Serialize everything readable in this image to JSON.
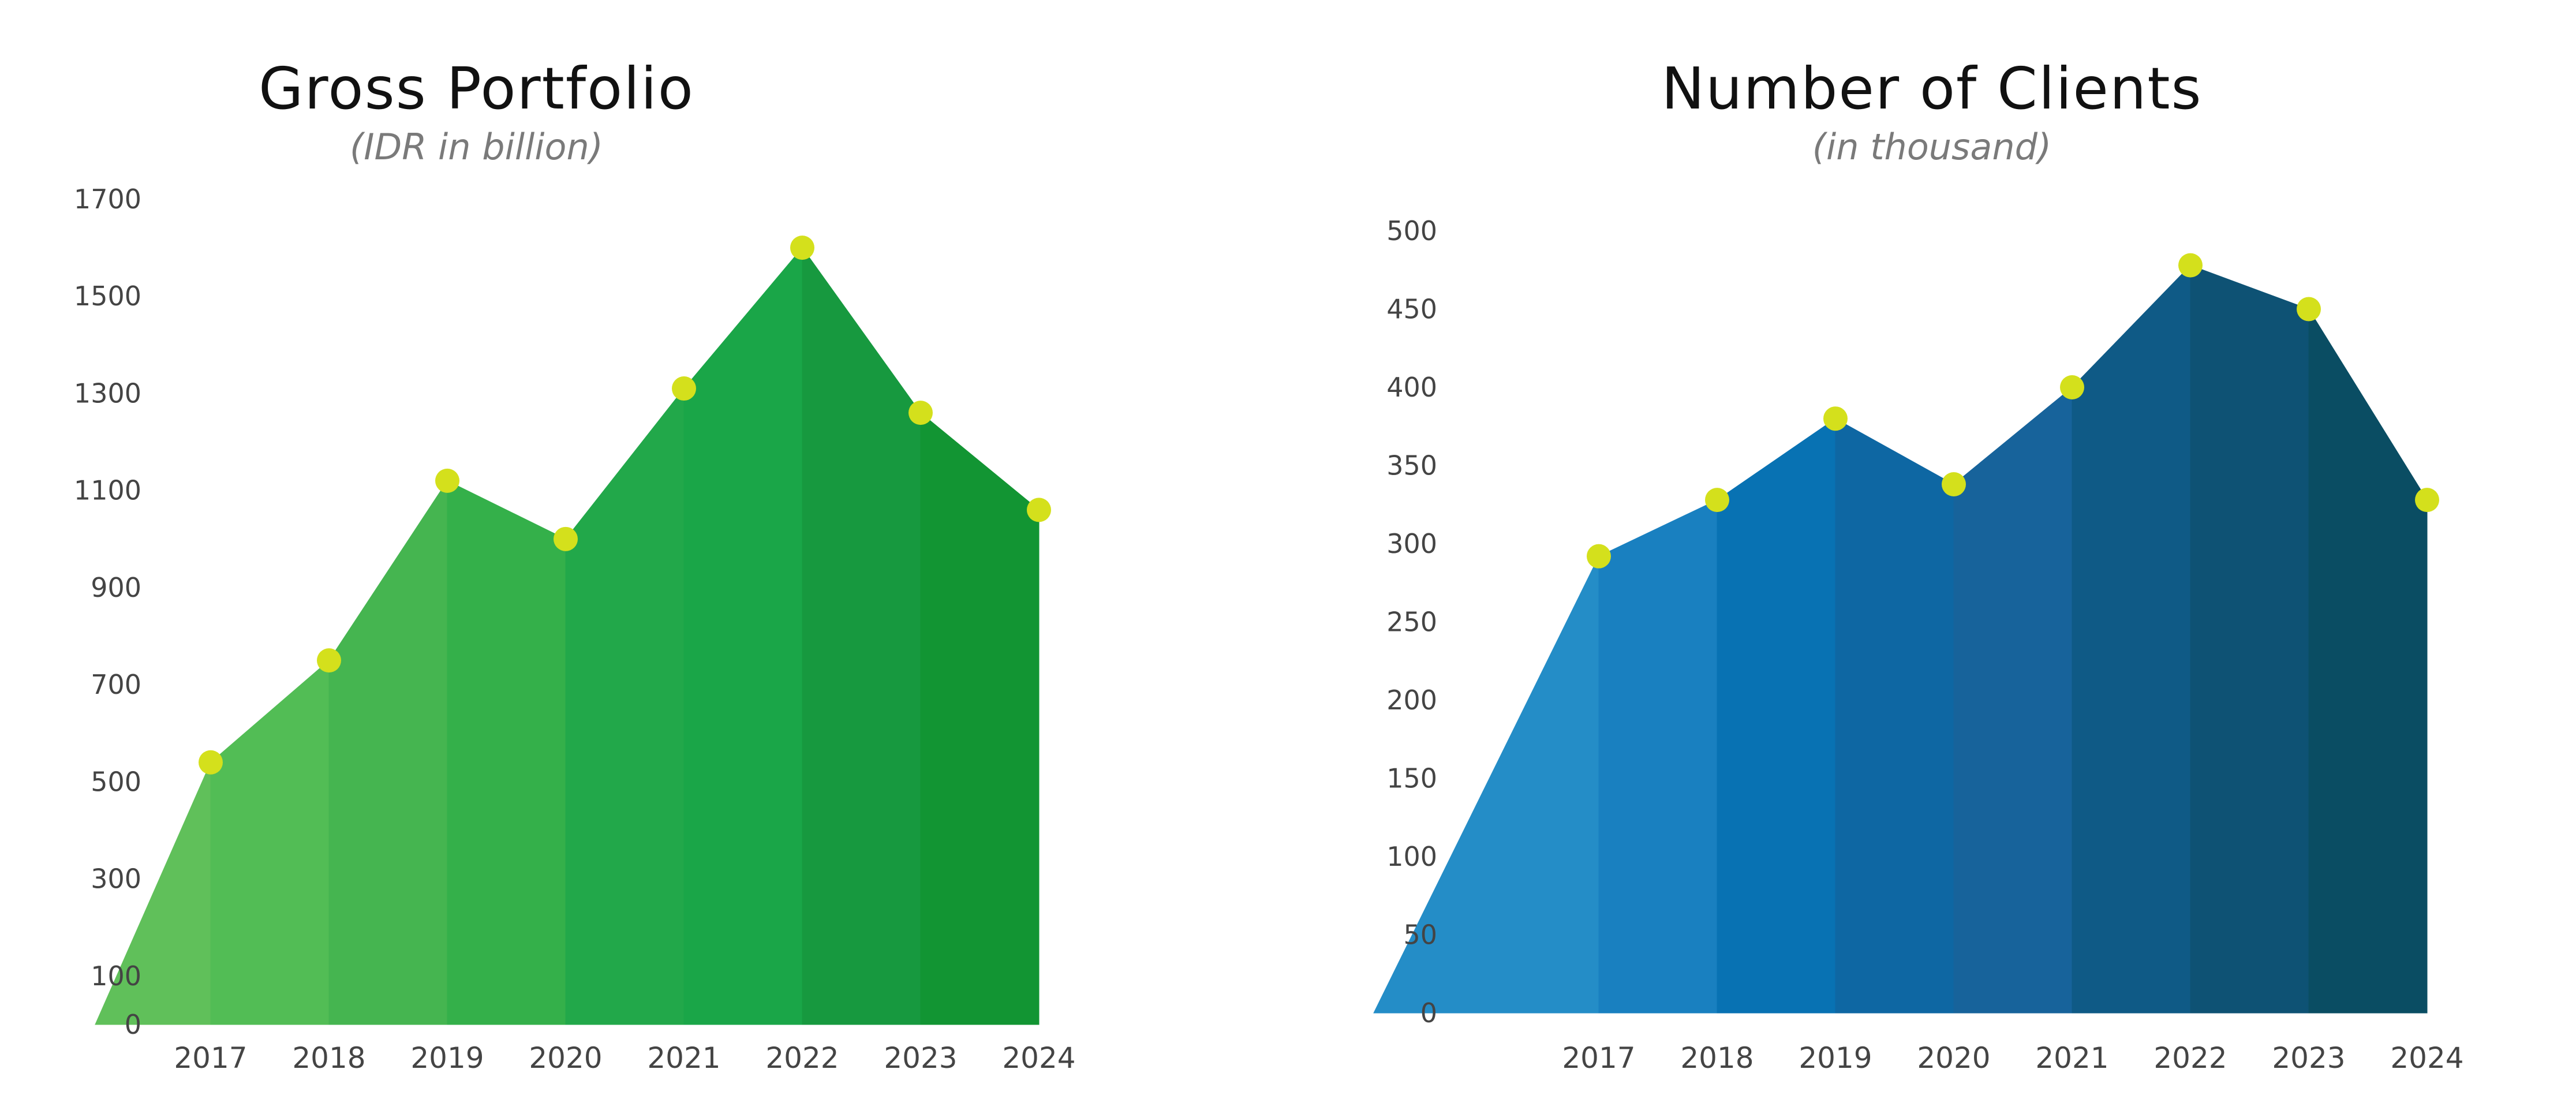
{
  "chart_data": [
    {
      "type": "area",
      "title": "Gross Portfolio",
      "subtitle": "(IDR in billion)",
      "categories": [
        "2017",
        "2018",
        "2019",
        "2020",
        "2021",
        "2022",
        "2023",
        "2024"
      ],
      "values": [
        540,
        750,
        1120,
        1000,
        1310,
        1600,
        1260,
        1060
      ],
      "ylim": [
        0,
        1700
      ],
      "yticks": [
        0,
        100,
        300,
        500,
        700,
        900,
        1100,
        1300,
        1500,
        1700
      ],
      "grid": false,
      "colors": {
        "segments": [
          "#60C05A",
          "#52BD55",
          "#45B550",
          "#34B04A",
          "#22A84A",
          "#1AA648",
          "#17993F",
          "#129533"
        ],
        "marker": "#D4E01C"
      }
    },
    {
      "type": "area",
      "title": "Number of Clients",
      "subtitle": "(in thousand)",
      "categories": [
        "2017",
        "2018",
        "2019",
        "2020",
        "2021",
        "2022",
        "2023",
        "2024"
      ],
      "values": [
        292,
        328,
        380,
        338,
        400,
        478,
        450,
        328
      ],
      "ylim": [
        0,
        500
      ],
      "yticks": [
        0,
        50,
        100,
        150,
        200,
        250,
        300,
        350,
        400,
        450,
        500
      ],
      "grid": false,
      "colors": {
        "segments": [
          "#248DC7",
          "#1980C0",
          "#0872B3",
          "#0E67A3",
          "#17639B",
          "#0F5A86",
          "#0E5274",
          "#0A4D63"
        ],
        "marker": "#D4E01C"
      }
    }
  ]
}
